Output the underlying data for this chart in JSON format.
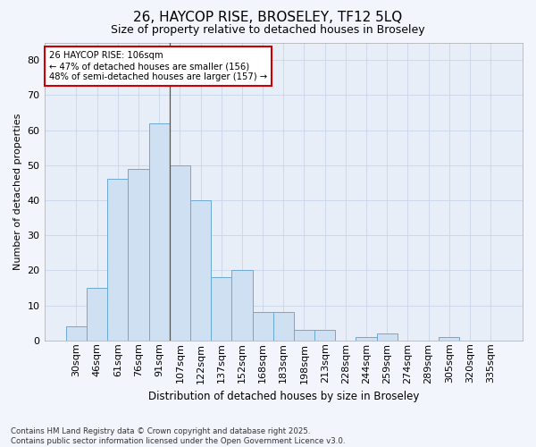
{
  "title_line1": "26, HAYCOP RISE, BROSELEY, TF12 5LQ",
  "title_line2": "Size of property relative to detached houses in Broseley",
  "xlabel": "Distribution of detached houses by size in Broseley",
  "ylabel": "Number of detached properties",
  "categories": [
    "30sqm",
    "46sqm",
    "61sqm",
    "76sqm",
    "91sqm",
    "107sqm",
    "122sqm",
    "137sqm",
    "152sqm",
    "168sqm",
    "183sqm",
    "198sqm",
    "213sqm",
    "228sqm",
    "244sqm",
    "259sqm",
    "274sqm",
    "289sqm",
    "305sqm",
    "320sqm",
    "335sqm"
  ],
  "values": [
    4,
    15,
    46,
    49,
    62,
    50,
    40,
    18,
    20,
    8,
    8,
    3,
    3,
    0,
    1,
    2,
    0,
    0,
    1,
    0,
    0
  ],
  "bar_color": "#cfe0f2",
  "bar_edge_color": "#6aaad4",
  "vline_index": 5,
  "annotation_text": "26 HAYCOP RISE: 106sqm\n← 47% of detached houses are smaller (156)\n48% of semi-detached houses are larger (157) →",
  "annotation_box_color": "#ffffff",
  "annotation_edge_color": "#cc0000",
  "ylim": [
    0,
    85
  ],
  "yticks": [
    0,
    10,
    20,
    30,
    40,
    50,
    60,
    70,
    80
  ],
  "grid_color": "#c8d4e8",
  "background_color": "#e8eef8",
  "fig_background": "#f2f5fb",
  "footer_line1": "Contains HM Land Registry data © Crown copyright and database right 2025.",
  "footer_line2": "Contains public sector information licensed under the Open Government Licence v3.0."
}
